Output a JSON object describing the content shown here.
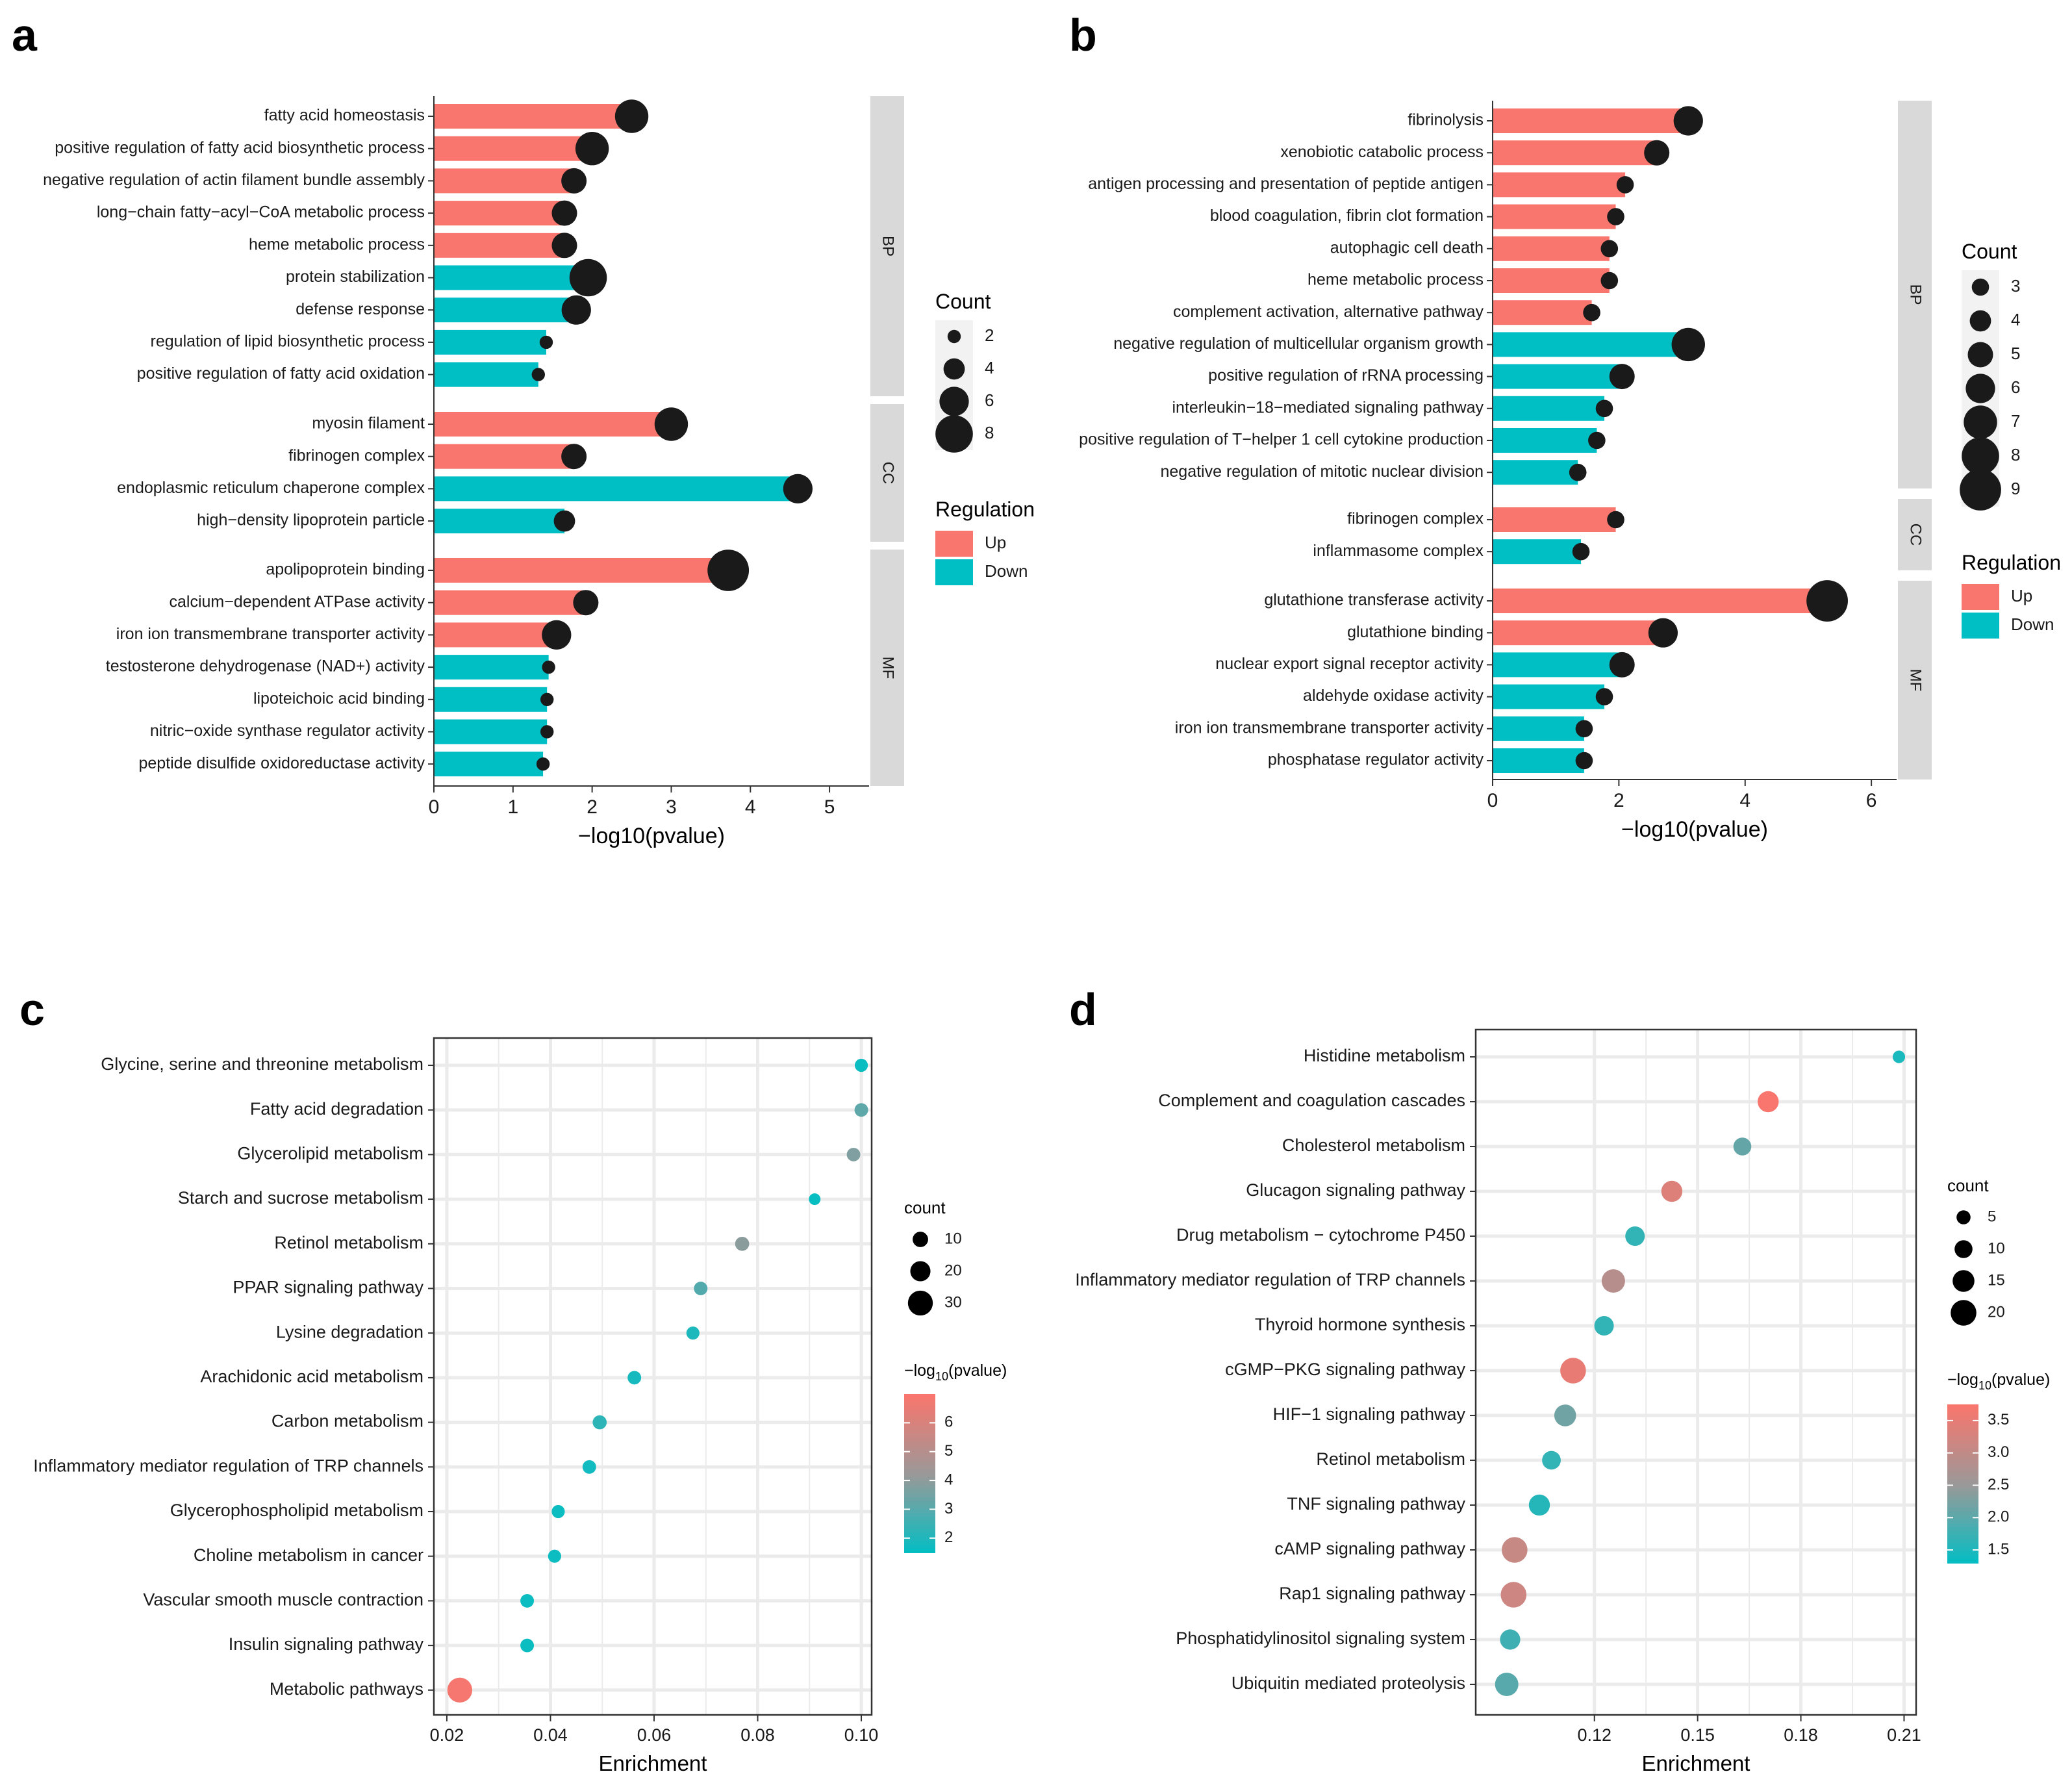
{
  "colors": {
    "up": "#f8766d",
    "down": "#00bfc4",
    "dot": "#1a1a1a",
    "strip": "#d9d9d9",
    "panel_bg": "#ffffff",
    "grid": "#ebebeb",
    "mid": "#999999"
  },
  "panel_labels": {
    "a": "a",
    "b": "b",
    "c": "c",
    "d": "d"
  },
  "chart_data": [
    {
      "id": "a",
      "type": "bar",
      "xlabel": "−log10(pvalue)",
      "xlim": [
        0,
        5.5
      ],
      "xticks": [
        0,
        1,
        2,
        3,
        4,
        5
      ],
      "legend": {
        "size_title": "Count",
        "size_values": [
          2,
          4,
          6,
          8
        ],
        "color_title": "Regulation",
        "color_items": [
          {
            "label": "Up",
            "key": "up"
          },
          {
            "label": "Down",
            "key": "down"
          }
        ]
      },
      "facets": [
        {
          "name": "BP",
          "rows": [
            {
              "label": "fatty acid homeostasis",
              "value": 2.5,
              "reg": "up",
              "count": 7
            },
            {
              "label": "positive regulation of fatty acid biosynthetic process",
              "value": 2.0,
              "reg": "up",
              "count": 7
            },
            {
              "label": "negative regulation of actin filament bundle assembly",
              "value": 1.77,
              "reg": "up",
              "count": 5
            },
            {
              "label": "long−chain fatty−acyl−CoA metabolic process",
              "value": 1.65,
              "reg": "up",
              "count": 5
            },
            {
              "label": "heme metabolic process",
              "value": 1.65,
              "reg": "up",
              "count": 5
            },
            {
              "label": "protein stabilization",
              "value": 1.95,
              "reg": "down",
              "count": 8
            },
            {
              "label": "defense response",
              "value": 1.8,
              "reg": "down",
              "count": 6
            },
            {
              "label": "regulation of lipid biosynthetic process",
              "value": 1.42,
              "reg": "down",
              "count": 2
            },
            {
              "label": "positive regulation of fatty acid oxidation",
              "value": 1.32,
              "reg": "down",
              "count": 2
            }
          ]
        },
        {
          "name": "CC",
          "rows": [
            {
              "label": "myosin filament",
              "value": 3.0,
              "reg": "up",
              "count": 7
            },
            {
              "label": "fibrinogen complex",
              "value": 1.77,
              "reg": "up",
              "count": 5
            },
            {
              "label": "endoplasmic reticulum chaperone complex",
              "value": 4.6,
              "reg": "down",
              "count": 6
            },
            {
              "label": "high−density lipoprotein particle",
              "value": 1.65,
              "reg": "down",
              "count": 4
            }
          ]
        },
        {
          "name": "MF",
          "rows": [
            {
              "label": "apolipoprotein binding",
              "value": 3.72,
              "reg": "up",
              "count": 9
            },
            {
              "label": "calcium−dependent ATPase activity",
              "value": 1.92,
              "reg": "up",
              "count": 5
            },
            {
              "label": "iron ion transmembrane transporter activity",
              "value": 1.55,
              "reg": "up",
              "count": 6
            },
            {
              "label": "testosterone dehydrogenase (NAD+) activity",
              "value": 1.45,
              "reg": "down",
              "count": 2
            },
            {
              "label": "lipoteichoic acid binding",
              "value": 1.43,
              "reg": "down",
              "count": 2
            },
            {
              "label": "nitric−oxide synthase regulator activity",
              "value": 1.43,
              "reg": "down",
              "count": 2
            },
            {
              "label": "peptide disulfide oxidoreductase activity",
              "value": 1.38,
              "reg": "down",
              "count": 2
            }
          ]
        }
      ]
    },
    {
      "id": "b",
      "type": "bar",
      "xlabel": "−log10(pvalue)",
      "xlim": [
        0,
        6.4
      ],
      "xticks": [
        0,
        2,
        4,
        6
      ],
      "legend": {
        "size_title": "Count",
        "size_values": [
          3,
          4,
          5,
          6,
          7,
          8,
          9
        ],
        "color_title": "Regulation",
        "color_items": [
          {
            "label": "Up",
            "key": "up"
          },
          {
            "label": "Down",
            "key": "down"
          }
        ]
      },
      "facets": [
        {
          "name": "BP",
          "rows": [
            {
              "label": "fibrinolysis",
              "value": 3.1,
              "reg": "up",
              "count": 6
            },
            {
              "label": "xenobiotic catabolic process",
              "value": 2.6,
              "reg": "up",
              "count": 5
            },
            {
              "label": "antigen processing and presentation of peptide antigen",
              "value": 2.1,
              "reg": "up",
              "count": 3
            },
            {
              "label": "blood coagulation, fibrin clot formation",
              "value": 1.95,
              "reg": "up",
              "count": 3
            },
            {
              "label": "autophagic cell death",
              "value": 1.85,
              "reg": "up",
              "count": 3
            },
            {
              "label": "heme metabolic process",
              "value": 1.85,
              "reg": "up",
              "count": 3
            },
            {
              "label": "complement activation, alternative pathway",
              "value": 1.57,
              "reg": "up",
              "count": 3
            },
            {
              "label": "negative regulation of multicellular organism growth",
              "value": 3.1,
              "reg": "down",
              "count": 7
            },
            {
              "label": "positive regulation of rRNA processing",
              "value": 2.05,
              "reg": "down",
              "count": 5
            },
            {
              "label": "interleukin−18−mediated signaling pathway",
              "value": 1.77,
              "reg": "down",
              "count": 3
            },
            {
              "label": "positive regulation of T−helper 1 cell cytokine production",
              "value": 1.65,
              "reg": "down",
              "count": 3
            },
            {
              "label": "negative regulation of mitotic nuclear division",
              "value": 1.35,
              "reg": "down",
              "count": 3
            }
          ]
        },
        {
          "name": "CC",
          "rows": [
            {
              "label": "fibrinogen complex",
              "value": 1.95,
              "reg": "up",
              "count": 3
            },
            {
              "label": "inflammasome complex",
              "value": 1.4,
              "reg": "down",
              "count": 3
            }
          ]
        },
        {
          "name": "MF",
          "rows": [
            {
              "label": "glutathione transferase activity",
              "value": 5.3,
              "reg": "up",
              "count": 9
            },
            {
              "label": "glutathione binding",
              "value": 2.7,
              "reg": "up",
              "count": 6
            },
            {
              "label": "nuclear export signal receptor activity",
              "value": 2.05,
              "reg": "down",
              "count": 5
            },
            {
              "label": "aldehyde oxidase activity",
              "value": 1.77,
              "reg": "down",
              "count": 3
            },
            {
              "label": "iron ion transmembrane transporter activity",
              "value": 1.45,
              "reg": "down",
              "count": 3
            },
            {
              "label": "phosphatase regulator activity",
              "value": 1.45,
              "reg": "down",
              "count": 3
            }
          ]
        }
      ]
    },
    {
      "id": "c",
      "type": "scatter",
      "xlabel": "Enrichment",
      "xlim": [
        0.0175,
        0.102
      ],
      "xticks": [
        0.02,
        0.04,
        0.06,
        0.08,
        0.1
      ],
      "xticklabels": [
        "0.02",
        "0.04",
        "0.06",
        "0.08",
        "0.10"
      ],
      "legend": {
        "size_title": "count",
        "size_values": [
          10,
          20,
          30
        ],
        "size_range": [
          2,
          35
        ],
        "color_title": "−log",
        "color_title_sub": "10",
        "color_title_rest": "(pvalue)",
        "color_range": [
          1.5,
          7
        ],
        "color_ticks": [
          2,
          3,
          4,
          5,
          6
        ]
      },
      "points": [
        {
          "label": "Glycine, serine and threonine metabolism",
          "x": 0.1,
          "count": 5,
          "logp": 1.7
        },
        {
          "label": "Fatty acid degradation",
          "x": 0.1,
          "count": 6,
          "logp": 3.2
        },
        {
          "label": "Glycerolipid metabolism",
          "x": 0.0985,
          "count": 6,
          "logp": 3.8
        },
        {
          "label": "Starch and sucrose metabolism",
          "x": 0.091,
          "count": 2,
          "logp": 1.6
        },
        {
          "label": "Retinol metabolism",
          "x": 0.077,
          "count": 7,
          "logp": 4.0
        },
        {
          "label": "PPAR signaling pathway",
          "x": 0.069,
          "count": 6,
          "logp": 3.0
        },
        {
          "label": "Lysine degradation",
          "x": 0.0675,
          "count": 5,
          "logp": 2.0
        },
        {
          "label": "Arachidonic acid metabolism",
          "x": 0.0562,
          "count": 6,
          "logp": 1.9
        },
        {
          "label": "Carbon metabolism",
          "x": 0.0495,
          "count": 7,
          "logp": 2.3
        },
        {
          "label": "Inflammatory mediator regulation of TRP channels",
          "x": 0.0475,
          "count": 6,
          "logp": 1.8
        },
        {
          "label": "Glycerophospholipid metabolism",
          "x": 0.0415,
          "count": 5,
          "logp": 1.7
        },
        {
          "label": "Choline metabolism in cancer",
          "x": 0.0408,
          "count": 5,
          "logp": 1.7
        },
        {
          "label": "Vascular smooth muscle contraction",
          "x": 0.0355,
          "count": 6,
          "logp": 1.7
        },
        {
          "label": "Insulin signaling pathway",
          "x": 0.0355,
          "count": 6,
          "logp": 1.7
        },
        {
          "label": "Metabolic pathways",
          "x": 0.0225,
          "count": 30,
          "logp": 6.9
        }
      ]
    },
    {
      "id": "d",
      "type": "scatter",
      "xlabel": "Enrichment",
      "xlim": [
        0.0855,
        0.2135
      ],
      "xticks": [
        0.12,
        0.15,
        0.18,
        0.21
      ],
      "xticklabels": [
        "0.12",
        "0.15",
        "0.18",
        "0.21"
      ],
      "legend": {
        "size_title": "count",
        "size_values": [
          5,
          10,
          15,
          20
        ],
        "size_range": [
          2,
          22
        ],
        "color_title": "−log",
        "color_title_sub": "10",
        "color_title_rest": "(pvalue)",
        "color_range": [
          1.3,
          3.75
        ],
        "color_ticks": [
          1.5,
          2.0,
          2.5,
          3.0,
          3.5
        ],
        "color_ticklabels": [
          "1.5",
          "2.0",
          "2.5",
          "3.0",
          "3.5"
        ]
      },
      "points": [
        {
          "label": "Histidine metabolism",
          "x": 0.2085,
          "count": 3,
          "logp": 1.5
        },
        {
          "label": "Complement and coagulation cascades",
          "x": 0.1705,
          "count": 14,
          "logp": 3.75
        },
        {
          "label": "Cholesterol metabolism",
          "x": 0.163,
          "count": 10,
          "logp": 2.1
        },
        {
          "label": "Glucagon signaling pathway",
          "x": 0.1425,
          "count": 14,
          "logp": 3.4
        },
        {
          "label": "Drug metabolism − cytochrome P450",
          "x": 0.1318,
          "count": 12,
          "logp": 1.7
        },
        {
          "label": "Inflammatory mediator regulation of TRP channels",
          "x": 0.1255,
          "count": 17,
          "logp": 2.9
        },
        {
          "label": "Thyroid hormone synthesis",
          "x": 0.1228,
          "count": 12,
          "logp": 1.7
        },
        {
          "label": "cGMP−PKG signaling pathway",
          "x": 0.1138,
          "count": 20,
          "logp": 3.55
        },
        {
          "label": "HIF−1 signaling pathway",
          "x": 0.1115,
          "count": 15,
          "logp": 2.2
        },
        {
          "label": "Retinol metabolism",
          "x": 0.1075,
          "count": 11,
          "logp": 1.7
        },
        {
          "label": "TNF signaling pathway",
          "x": 0.104,
          "count": 14,
          "logp": 1.6
        },
        {
          "label": "cAMP signaling pathway",
          "x": 0.0968,
          "count": 20,
          "logp": 3.1
        },
        {
          "label": "Rap1 signaling pathway",
          "x": 0.0965,
          "count": 20,
          "logp": 3.2
        },
        {
          "label": "Phosphatidylinositol signaling system",
          "x": 0.0955,
          "count": 13,
          "logp": 1.8
        },
        {
          "label": "Ubiquitin mediated proteolysis",
          "x": 0.0945,
          "count": 17,
          "logp": 2.0
        }
      ]
    }
  ]
}
